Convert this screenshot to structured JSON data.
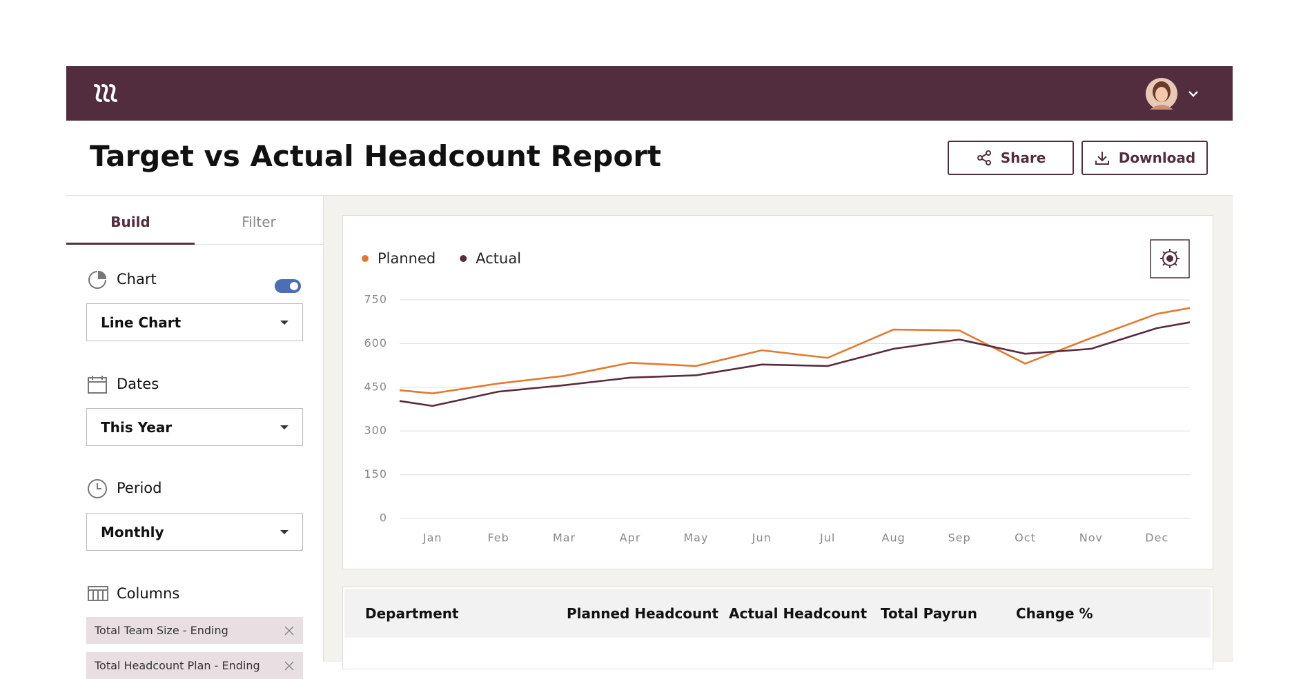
{
  "header": {
    "title": "Target vs Actual Headcount Report",
    "share": "Share",
    "download": "Download"
  },
  "sidebar": {
    "tabs": [
      "Build",
      "Filter"
    ],
    "sections": [
      {
        "label": "Chart",
        "value": "Line Chart"
      },
      {
        "label": "Dates",
        "value": "This Year"
      },
      {
        "label": "Period",
        "value": "Monthly"
      }
    ],
    "columns_label": "Columns",
    "chips": [
      "Total Team Size - Ending",
      "Total Headcount Plan - Ending"
    ]
  },
  "chart_data": {
    "type": "line",
    "categories": [
      null,
      "Jan",
      "Feb",
      "Mar",
      "Apr",
      "May",
      "Jun",
      "Jul",
      "Aug",
      "Sep",
      "Oct",
      "Nov",
      "Dec",
      null
    ],
    "series": [
      {
        "name": "Planned",
        "color": "#e07a30",
        "values": [
          440,
          429,
          463,
          489,
          534,
          523,
          577,
          551,
          648,
          645,
          531,
          619,
          702,
          722
        ]
      },
      {
        "name": "Actual",
        "color": "#5a2a3e",
        "values": [
          403,
          386,
          435,
          457,
          483,
          491,
          528,
          523,
          582,
          614,
          565,
          582,
          653,
          673
        ]
      }
    ],
    "ylim": [
      0,
      750
    ],
    "yticks": [
      0,
      150,
      300,
      450,
      600,
      750
    ],
    "grid": true,
    "legend": "top-left"
  },
  "table": {
    "columns": [
      "Department",
      "Planned Headcount",
      "Actual Headcount",
      "Total Payrun",
      "Change %"
    ]
  }
}
